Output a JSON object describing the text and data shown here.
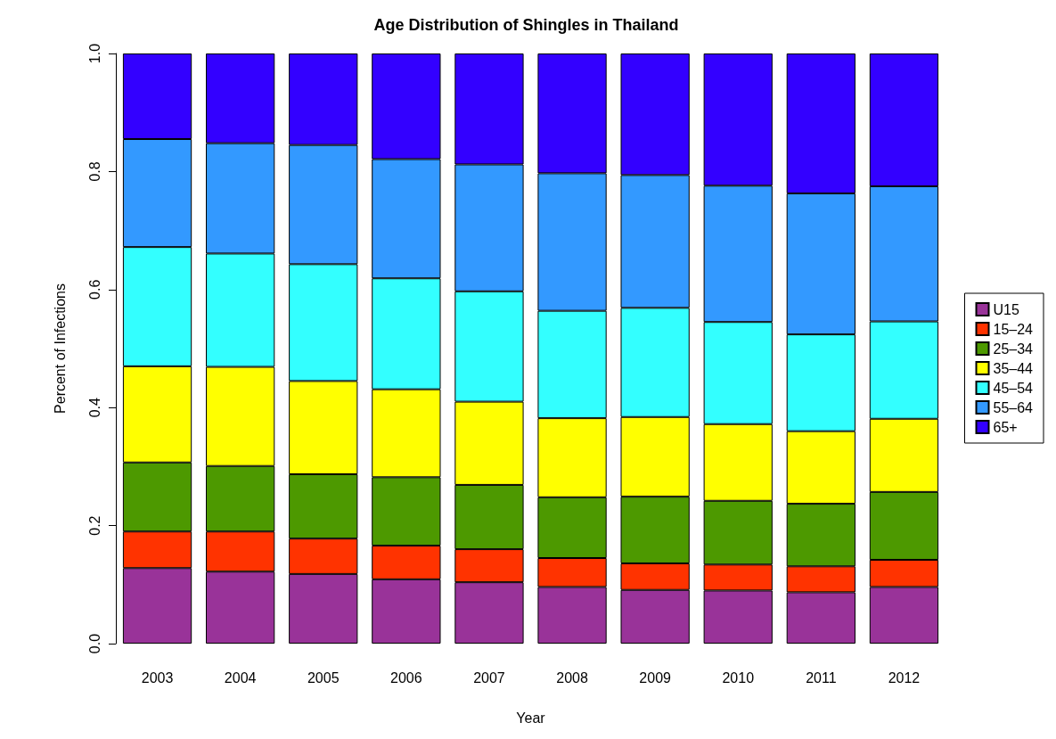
{
  "chart_data": {
    "type": "bar",
    "title": "Age Distribution of Shingles in Thailand",
    "xlabel": "Year",
    "ylabel": "Percent of Infections",
    "categories": [
      "2003",
      "2004",
      "2005",
      "2006",
      "2007",
      "2008",
      "2009",
      "2010",
      "2011",
      "2012"
    ],
    "stacked": true,
    "grid": false,
    "legend": "right",
    "ylim": [
      0,
      1
    ],
    "yticks": [
      {
        "value": 0,
        "label": "0.0"
      },
      0.2,
      0.4,
      0.6,
      0.8,
      {
        "value": 1,
        "label": "1.0"
      }
    ],
    "series": [
      {
        "name": "U15",
        "color": "#993399",
        "values": [
          0.128,
          0.122,
          0.118,
          0.109,
          0.104,
          0.096,
          0.091,
          0.09,
          0.087,
          0.096
        ]
      },
      {
        "name": "15–24",
        "color": "#ff3300",
        "values": [
          0.062,
          0.068,
          0.06,
          0.057,
          0.056,
          0.049,
          0.045,
          0.044,
          0.044,
          0.046
        ]
      },
      {
        "name": "25–34",
        "color": "#4d9900",
        "values": [
          0.117,
          0.111,
          0.109,
          0.116,
          0.109,
          0.103,
          0.113,
          0.108,
          0.106,
          0.115
        ]
      },
      {
        "name": "35–44",
        "color": "#ffff00",
        "values": [
          0.163,
          0.168,
          0.158,
          0.149,
          0.141,
          0.134,
          0.135,
          0.13,
          0.123,
          0.124
        ]
      },
      {
        "name": "45–54",
        "color": "#33ffff",
        "values": [
          0.202,
          0.192,
          0.198,
          0.188,
          0.187,
          0.182,
          0.185,
          0.173,
          0.164,
          0.165
        ]
      },
      {
        "name": "55–64",
        "color": "#3399ff",
        "values": [
          0.183,
          0.187,
          0.202,
          0.202,
          0.215,
          0.233,
          0.225,
          0.231,
          0.239,
          0.229
        ]
      },
      {
        "name": "65+",
        "color": "#3300ff",
        "values": [
          0.145,
          0.152,
          0.155,
          0.179,
          0.188,
          0.203,
          0.206,
          0.224,
          0.237,
          0.225
        ]
      }
    ]
  }
}
